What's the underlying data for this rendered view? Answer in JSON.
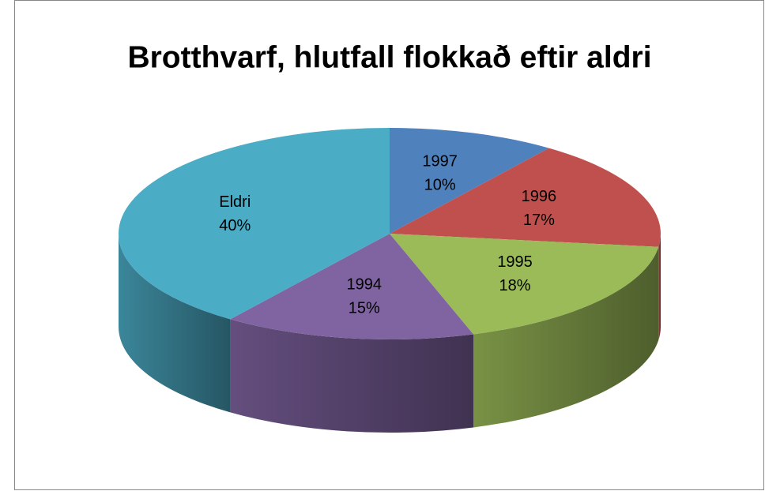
{
  "chart_data": {
    "type": "pie",
    "title": "Brotthvarf, hlutfall flokkað eftir aldri",
    "categories": [
      "1997",
      "1996",
      "1995",
      "1994",
      "Eldri"
    ],
    "values": [
      10,
      17,
      18,
      15,
      40
    ],
    "value_labels": [
      "10%",
      "17%",
      "18%",
      "15%",
      "40%"
    ],
    "colors": [
      "#4f81bd",
      "#c0504d",
      "#9bbb59",
      "#8064a2",
      "#4bacc6"
    ]
  }
}
